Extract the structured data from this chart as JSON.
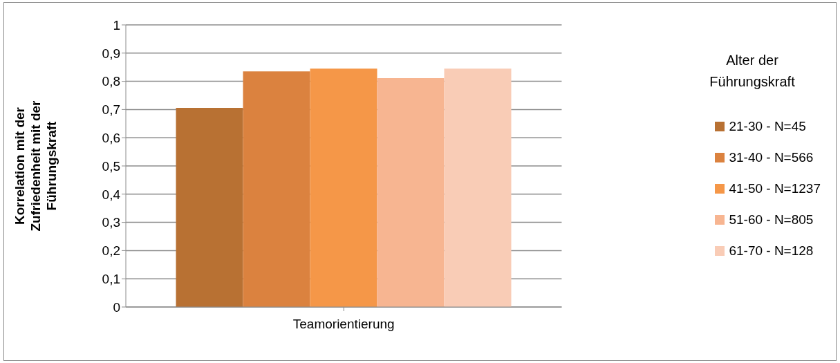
{
  "chart_data": {
    "type": "bar",
    "categories": [
      "Teamorientierung"
    ],
    "series": [
      {
        "name": "21-30 - N=45",
        "color": "#b87133",
        "values": [
          0.706
        ]
      },
      {
        "name": "31-40 - N=566",
        "color": "#db823f",
        "values": [
          0.835
        ]
      },
      {
        "name": "41-50 - N=1237",
        "color": "#f59748",
        "values": [
          0.845
        ]
      },
      {
        "name": "51-60 - N=805",
        "color": "#f7b591",
        "values": [
          0.811
        ]
      },
      {
        "name": "61-70 - N=128",
        "color": "#f9ccb6",
        "values": [
          0.845
        ]
      }
    ],
    "ylabel": "Korrelation mit der Zufriedenheit mit der Führungskraft",
    "legend_title": "Alter der Führungskraft",
    "ylim": [
      0,
      1
    ],
    "yticks": [
      {
        "value": 0,
        "label": "0"
      },
      {
        "value": 0.1,
        "label": "0,1"
      },
      {
        "value": 0.2,
        "label": "0,2"
      },
      {
        "value": 0.3,
        "label": "0,3"
      },
      {
        "value": 0.4,
        "label": "0,4"
      },
      {
        "value": 0.5,
        "label": "0,5"
      },
      {
        "value": 0.6,
        "label": "0,6"
      },
      {
        "value": 0.7,
        "label": "0,7"
      },
      {
        "value": 0.8,
        "label": "0,8"
      },
      {
        "value": 0.9,
        "label": "0,9"
      },
      {
        "value": 1,
        "label": "1"
      }
    ],
    "grid": "y",
    "legend": "right"
  }
}
